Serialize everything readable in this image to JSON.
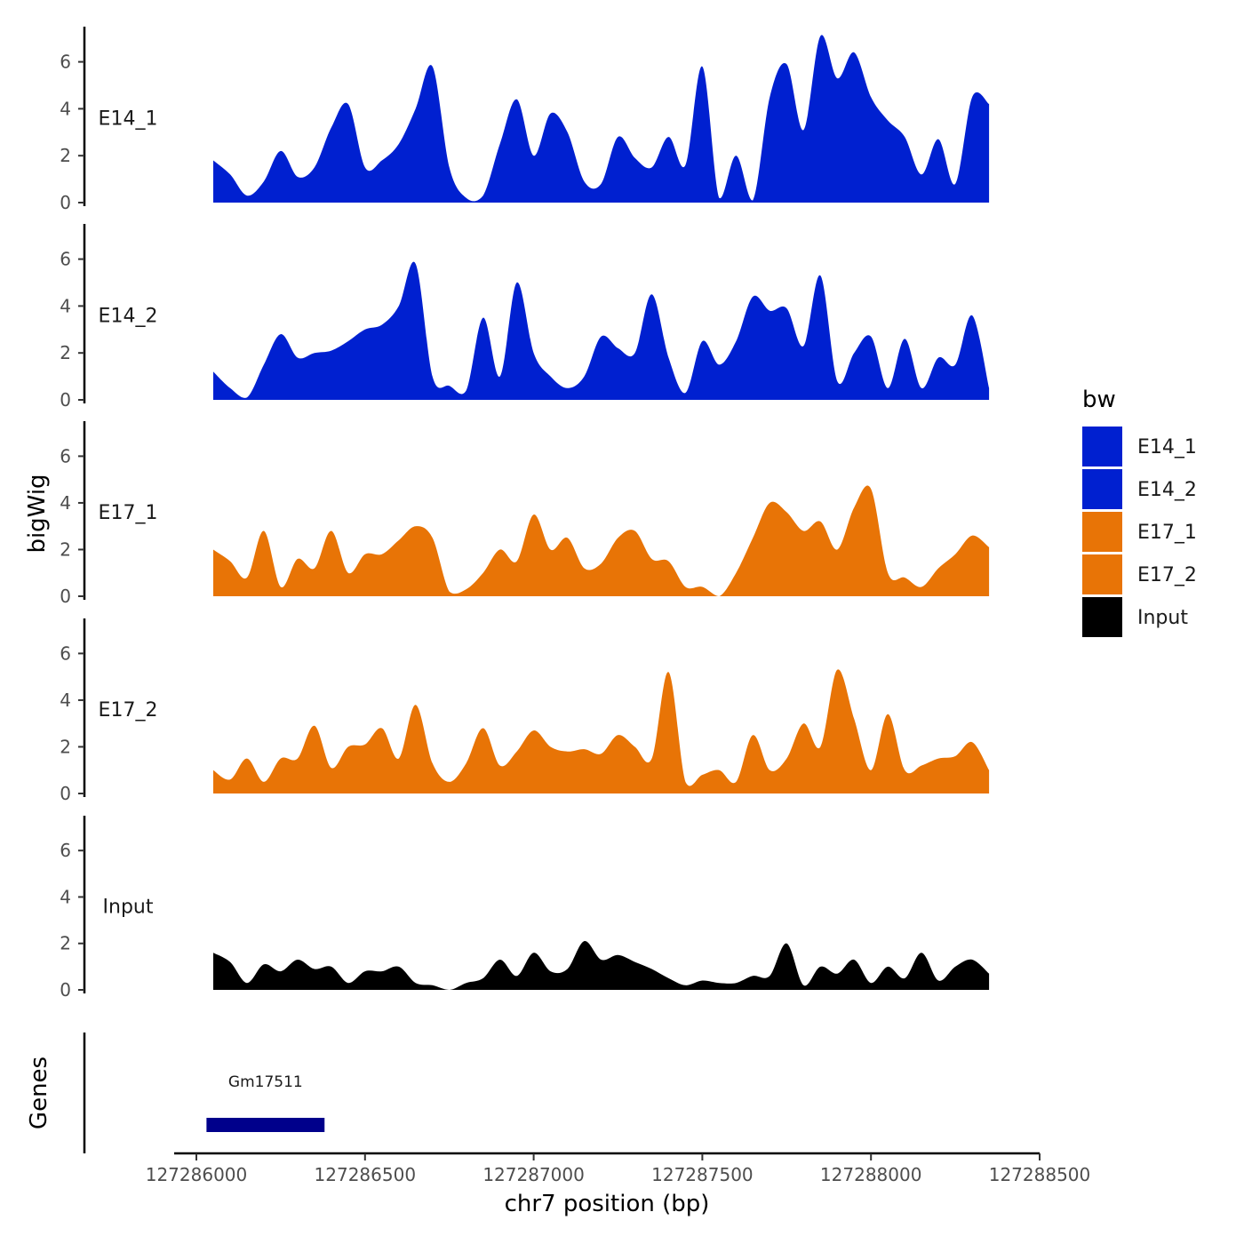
{
  "chart_data": {
    "type": "area",
    "xlabel": "chr7 position (bp)",
    "ylabel": "bigWig",
    "genes_label": "Genes",
    "xlim": [
      127285800,
      127288500
    ],
    "x_ticks": [
      127286000,
      127286500,
      127287000,
      127287500,
      127288000,
      127288500
    ],
    "x_tick_labels": [
      "127286000",
      "127286500",
      "127287000",
      "127287500",
      "127288000",
      "127288500"
    ],
    "ylim": [
      0,
      7.5
    ],
    "y_ticks": [
      0,
      2,
      4,
      6
    ],
    "y_tick_labels": [
      "0",
      "2",
      "4",
      "6"
    ],
    "legend": {
      "title": "bw",
      "entries": [
        {
          "label": "E14_1",
          "color": "#0020d0"
        },
        {
          "label": "E14_2",
          "color": "#0020d0"
        },
        {
          "label": "E17_1",
          "color": "#e87406"
        },
        {
          "label": "E17_2",
          "color": "#e87406"
        },
        {
          "label": "Input",
          "color": "#000000"
        }
      ]
    },
    "series": [
      {
        "name": "E14_1",
        "label": "E14_1",
        "color": "#0020d0",
        "x": [
          127286050,
          127286100,
          127286150,
          127286200,
          127286250,
          127286300,
          127286350,
          127286400,
          127286450,
          127286500,
          127286550,
          127286600,
          127286650,
          127286700,
          127286750,
          127286800,
          127286850,
          127286900,
          127286950,
          127287000,
          127287050,
          127287100,
          127287150,
          127287200,
          127287250,
          127287300,
          127287350,
          127287400,
          127287450,
          127287500,
          127287550,
          127287600,
          127287650,
          127287700,
          127287750,
          127287800,
          127287850,
          127287900,
          127287950,
          127288000,
          127288050,
          127288100,
          127288150,
          127288200,
          127288250,
          127288300,
          127288350
        ],
        "values": [
          1.8,
          1.2,
          0.3,
          0.9,
          2.2,
          1.1,
          1.5,
          3.2,
          4.2,
          1.5,
          1.8,
          2.5,
          4.0,
          5.8,
          1.5,
          0.2,
          0.3,
          2.5,
          4.4,
          2.0,
          3.8,
          3.0,
          0.9,
          0.8,
          2.8,
          1.9,
          1.5,
          2.8,
          1.6,
          5.8,
          0.2,
          2.0,
          0.1,
          4.5,
          5.9,
          3.1,
          7.1,
          5.3,
          6.4,
          4.5,
          3.5,
          2.8,
          1.2,
          2.7,
          0.8,
          4.5,
          4.2
        ]
      },
      {
        "name": "E14_2",
        "label": "E14_2",
        "color": "#0020d0",
        "x": [
          127286050,
          127286100,
          127286150,
          127286200,
          127286250,
          127286300,
          127286350,
          127286400,
          127286450,
          127286500,
          127286550,
          127286600,
          127286650,
          127286700,
          127286750,
          127286800,
          127286850,
          127286900,
          127286950,
          127287000,
          127287050,
          127287100,
          127287150,
          127287200,
          127287250,
          127287300,
          127287350,
          127287400,
          127287450,
          127287500,
          127287550,
          127287600,
          127287650,
          127287700,
          127287750,
          127287800,
          127287850,
          127287900,
          127287950,
          127288000,
          127288050,
          127288100,
          127288150,
          127288200,
          127288250,
          127288300,
          127288350
        ],
        "values": [
          1.2,
          0.5,
          0.1,
          1.5,
          2.8,
          1.8,
          2.0,
          2.1,
          2.5,
          3.0,
          3.2,
          4.0,
          5.8,
          1.0,
          0.6,
          0.4,
          3.5,
          1.0,
          5.0,
          2.0,
          1.0,
          0.5,
          1.0,
          2.7,
          2.2,
          2.0,
          4.5,
          1.8,
          0.3,
          2.5,
          1.5,
          2.5,
          4.4,
          3.8,
          3.9,
          2.3,
          5.3,
          0.8,
          2.0,
          2.7,
          0.5,
          2.6,
          0.5,
          1.8,
          1.5,
          3.6,
          0.5
        ]
      },
      {
        "name": "E17_1",
        "label": "E17_1",
        "color": "#e87406",
        "x": [
          127286050,
          127286100,
          127286150,
          127286200,
          127286250,
          127286300,
          127286350,
          127286400,
          127286450,
          127286500,
          127286550,
          127286600,
          127286650,
          127286700,
          127286750,
          127286800,
          127286850,
          127286900,
          127286950,
          127287000,
          127287050,
          127287100,
          127287150,
          127287200,
          127287250,
          127287300,
          127287350,
          127287400,
          127287450,
          127287500,
          127287550,
          127287600,
          127287650,
          127287700,
          127287750,
          127287800,
          127287850,
          127287900,
          127287950,
          127288000,
          127288050,
          127288100,
          127288150,
          127288200,
          127288250,
          127288300,
          127288350
        ],
        "values": [
          2.0,
          1.5,
          0.8,
          2.8,
          0.4,
          1.6,
          1.2,
          2.8,
          1.0,
          1.8,
          1.8,
          2.4,
          3.0,
          2.5,
          0.2,
          0.3,
          1.0,
          2.0,
          1.5,
          3.5,
          2.0,
          2.5,
          1.2,
          1.4,
          2.5,
          2.8,
          1.6,
          1.5,
          0.4,
          0.4,
          0.0,
          1.0,
          2.5,
          4.0,
          3.6,
          2.8,
          3.2,
          2.0,
          3.8,
          4.6,
          1.0,
          0.8,
          0.4,
          1.2,
          1.8,
          2.6,
          2.1
        ]
      },
      {
        "name": "E17_2",
        "label": "E17_2",
        "color": "#e87406",
        "x": [
          127286050,
          127286100,
          127286150,
          127286200,
          127286250,
          127286300,
          127286350,
          127286400,
          127286450,
          127286500,
          127286550,
          127286600,
          127286650,
          127286700,
          127286750,
          127286800,
          127286850,
          127286900,
          127286950,
          127287000,
          127287050,
          127287100,
          127287150,
          127287200,
          127287250,
          127287300,
          127287350,
          127287400,
          127287450,
          127287500,
          127287550,
          127287600,
          127287650,
          127287700,
          127287750,
          127287800,
          127287850,
          127287900,
          127287950,
          127288000,
          127288050,
          127288100,
          127288150,
          127288200,
          127288250,
          127288300,
          127288350
        ],
        "values": [
          1.0,
          0.6,
          1.5,
          0.5,
          1.5,
          1.5,
          2.9,
          1.1,
          2.0,
          2.1,
          2.8,
          1.5,
          3.8,
          1.3,
          0.5,
          1.3,
          2.8,
          1.2,
          1.8,
          2.7,
          2.0,
          1.8,
          1.9,
          1.7,
          2.5,
          2.0,
          1.5,
          5.2,
          0.5,
          0.8,
          1.0,
          0.5,
          2.5,
          1.0,
          1.5,
          3.0,
          2.0,
          5.3,
          3.2,
          1.0,
          3.4,
          1.0,
          1.2,
          1.5,
          1.6,
          2.2,
          1.0
        ]
      },
      {
        "name": "Input",
        "label": "Input",
        "color": "#000000",
        "x": [
          127286050,
          127286100,
          127286150,
          127286200,
          127286250,
          127286300,
          127286350,
          127286400,
          127286450,
          127286500,
          127286550,
          127286600,
          127286650,
          127286700,
          127286750,
          127286800,
          127286850,
          127286900,
          127286950,
          127287000,
          127287050,
          127287100,
          127287150,
          127287200,
          127287250,
          127287300,
          127287350,
          127287400,
          127287450,
          127287500,
          127287550,
          127287600,
          127287650,
          127287700,
          127287750,
          127287800,
          127287850,
          127287900,
          127287950,
          127288000,
          127288050,
          127288100,
          127288150,
          127288200,
          127288250,
          127288300,
          127288350
        ],
        "values": [
          1.6,
          1.2,
          0.3,
          1.1,
          0.8,
          1.3,
          0.9,
          1.0,
          0.3,
          0.8,
          0.8,
          1.0,
          0.3,
          0.2,
          0.0,
          0.3,
          0.5,
          1.3,
          0.6,
          1.6,
          0.8,
          0.9,
          2.1,
          1.3,
          1.5,
          1.2,
          0.9,
          0.5,
          0.2,
          0.4,
          0.3,
          0.3,
          0.6,
          0.6,
          2.0,
          0.2,
          1.0,
          0.7,
          1.3,
          0.3,
          1.0,
          0.5,
          1.6,
          0.4,
          1.0,
          1.3,
          0.7
        ]
      }
    ],
    "genes": [
      {
        "name": "Gm17511",
        "start": 127286030,
        "end": 127286380,
        "color": "#00008b"
      }
    ]
  }
}
